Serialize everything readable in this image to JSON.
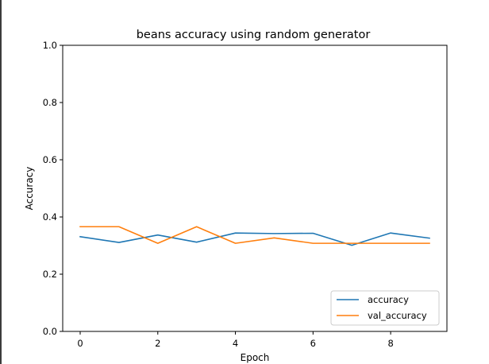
{
  "chart_data": {
    "type": "line",
    "title": "beans accuracy using random generator",
    "xlabel": "Epoch",
    "ylabel": "Accuracy",
    "xlim": [
      -0.45,
      9.45
    ],
    "ylim": [
      0.0,
      1.0
    ],
    "x_ticks": [
      0,
      2,
      4,
      6,
      8
    ],
    "x_tick_labels": [
      "0",
      "2",
      "4",
      "6",
      "8"
    ],
    "y_ticks": [
      0.0,
      0.2,
      0.4,
      0.6,
      0.8,
      1.0
    ],
    "y_tick_labels": [
      "0.0",
      "0.2",
      "0.4",
      "0.6",
      "0.8",
      "1.0"
    ],
    "grid": false,
    "legend_position": "lower-right",
    "x": [
      0,
      1,
      2,
      3,
      4,
      5,
      6,
      7,
      8,
      9
    ],
    "series": [
      {
        "name": "accuracy",
        "color": "#1f77b4",
        "values": [
          0.331,
          0.311,
          0.337,
          0.312,
          0.344,
          0.342,
          0.343,
          0.301,
          0.344,
          0.326
        ]
      },
      {
        "name": "val_accuracy",
        "color": "#ff7f0e",
        "values": [
          0.366,
          0.366,
          0.308,
          0.366,
          0.308,
          0.327,
          0.308,
          0.308,
          0.308,
          0.308
        ]
      }
    ]
  }
}
